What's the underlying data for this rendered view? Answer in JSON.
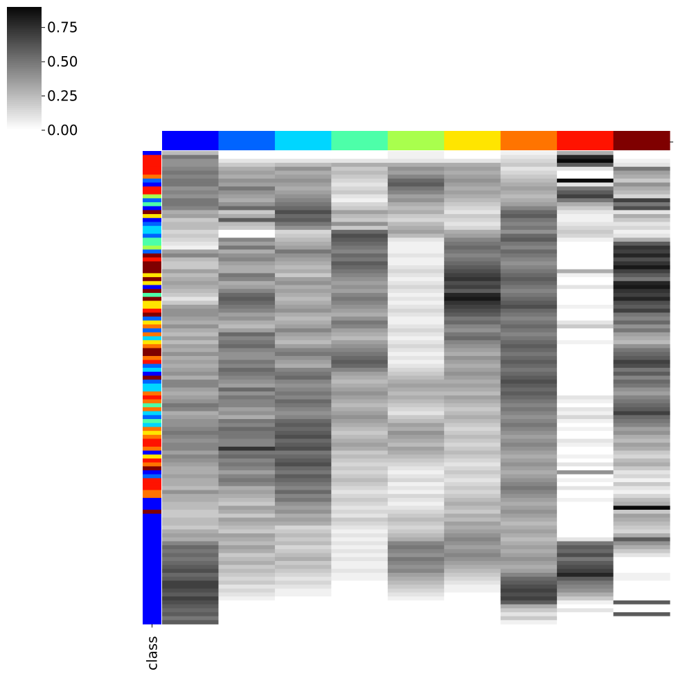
{
  "chart_data": {
    "type": "heatmap",
    "colormap": "Greys",
    "value_range": [
      0.0,
      0.9
    ],
    "colorbar": {
      "ticks": [
        0.0,
        0.25,
        0.5,
        0.75
      ],
      "tick_labels": [
        "0.00",
        "0.25",
        "0.50",
        "0.75"
      ]
    },
    "row_annotation_label": "class",
    "column_count": 9,
    "row_count": 120,
    "column_class_colors": [
      "#0000ff",
      "#0064ff",
      "#00d6ff",
      "#4dffa9",
      "#a9ff4d",
      "#ffe500",
      "#ff7400",
      "#ff1300",
      "#7f0000"
    ],
    "row_class_index_runs": [
      [
        0,
        1
      ],
      [
        7,
        5
      ],
      [
        6,
        1
      ],
      [
        1,
        1
      ],
      [
        0,
        1
      ],
      [
        7,
        2
      ],
      [
        4,
        1
      ],
      [
        1,
        1
      ],
      [
        3,
        1
      ],
      [
        0,
        1
      ],
      [
        8,
        1
      ],
      [
        5,
        1
      ],
      [
        0,
        1
      ],
      [
        1,
        1
      ],
      [
        2,
        2
      ],
      [
        1,
        1
      ],
      [
        3,
        2
      ],
      [
        4,
        1
      ],
      [
        1,
        1
      ],
      [
        8,
        1
      ],
      [
        7,
        1
      ],
      [
        8,
        3
      ],
      [
        5,
        1
      ],
      [
        8,
        1
      ],
      [
        5,
        1
      ],
      [
        0,
        1
      ],
      [
        8,
        1
      ],
      [
        3,
        1
      ],
      [
        8,
        1
      ],
      [
        5,
        2
      ],
      [
        7,
        1
      ],
      [
        8,
        1
      ],
      [
        1,
        1
      ],
      [
        5,
        1
      ],
      [
        6,
        1
      ],
      [
        1,
        1
      ],
      [
        6,
        1
      ],
      [
        2,
        1
      ],
      [
        5,
        1
      ],
      [
        6,
        1
      ],
      [
        8,
        2
      ],
      [
        6,
        1
      ],
      [
        7,
        1
      ],
      [
        1,
        1
      ],
      [
        2,
        1
      ],
      [
        0,
        1
      ],
      [
        8,
        1
      ],
      [
        1,
        1
      ],
      [
        2,
        2
      ],
      [
        6,
        1
      ],
      [
        7,
        1
      ],
      [
        6,
        1
      ],
      [
        3,
        1
      ],
      [
        6,
        1
      ],
      [
        2,
        1
      ],
      [
        1,
        1
      ],
      [
        3,
        1
      ],
      [
        2,
        1
      ],
      [
        6,
        1
      ],
      [
        5,
        1
      ],
      [
        6,
        1
      ],
      [
        7,
        2
      ],
      [
        6,
        1
      ],
      [
        0,
        1
      ],
      [
        5,
        1
      ],
      [
        7,
        1
      ],
      [
        6,
        1
      ],
      [
        8,
        1
      ],
      [
        0,
        1
      ],
      [
        1,
        1
      ],
      [
        7,
        1
      ],
      [
        7,
        2
      ],
      [
        6,
        2
      ],
      [
        0,
        3
      ],
      [
        8,
        1
      ]
    ],
    "columns": [
      [
        0.25,
        0.5,
        0.4,
        0.4,
        0.45,
        0.5,
        0.45,
        0.5,
        0.5,
        0.4,
        0.45,
        0.4,
        0.5,
        0.5,
        0.45,
        0.3,
        0.35,
        0.2,
        0.25,
        0.25,
        0.15,
        0.2,
        0.15,
        0.1,
        0.05,
        0.35,
        0.45,
        0.25,
        0.2,
        0.2,
        0.35,
        0.25,
        0.3,
        0.35,
        0.3,
        0.25,
        0.2,
        0.1,
        0.2,
        0.35,
        0.4,
        0.4,
        0.35,
        0.3,
        0.4,
        0.3,
        0.25,
        0.35,
        0.25,
        0.35,
        0.3,
        0.4,
        0.3,
        0.35,
        0.3,
        0.35,
        0.4,
        0.3,
        0.45,
        0.45,
        0.35,
        0.3,
        0.35,
        0.4,
        0.5,
        0.45,
        0.3,
        0.35,
        0.4,
        0.4,
        0.45,
        0.5,
        0.45,
        0.4,
        0.45,
        0.45,
        0.35,
        0.45,
        0.4,
        0.35,
        0.3,
        0.3,
        0.35,
        0.3,
        0.3,
        0.25,
        0.4,
        0.3,
        0.3,
        0.25,
        0.25,
        0.2,
        0.2,
        0.25,
        0.25,
        0.2,
        0.3,
        0.35,
        0.3,
        0.45,
        0.55,
        0.5,
        0.55,
        0.5,
        0.55,
        0.6,
        0.65,
        0.55,
        0.6,
        0.7,
        0.7,
        0.65,
        0.6,
        0.7,
        0.65,
        0.6,
        0.55,
        0.6,
        0.5,
        0.6
      ],
      [
        0.0,
        0.0,
        0.1,
        0.2,
        0.3,
        0.35,
        0.3,
        0.4,
        0.35,
        0.5,
        0.4,
        0.35,
        0.3,
        0.4,
        0.55,
        0.2,
        0.3,
        0.6,
        0.25,
        0.2,
        0.0,
        0.0,
        0.45,
        0.35,
        0.5,
        0.3,
        0.4,
        0.45,
        0.35,
        0.3,
        0.3,
        0.5,
        0.45,
        0.3,
        0.35,
        0.45,
        0.55,
        0.6,
        0.55,
        0.5,
        0.45,
        0.35,
        0.4,
        0.3,
        0.25,
        0.35,
        0.55,
        0.45,
        0.5,
        0.55,
        0.45,
        0.4,
        0.4,
        0.5,
        0.45,
        0.55,
        0.5,
        0.45,
        0.4,
        0.35,
        0.55,
        0.4,
        0.5,
        0.45,
        0.45,
        0.35,
        0.4,
        0.3,
        0.5,
        0.45,
        0.55,
        0.5,
        0.5,
        0.45,
        0.45,
        0.75,
        0.5,
        0.55,
        0.45,
        0.5,
        0.45,
        0.35,
        0.45,
        0.5,
        0.45,
        0.3,
        0.35,
        0.3,
        0.25,
        0.2,
        0.35,
        0.3,
        0.2,
        0.35,
        0.3,
        0.25,
        0.2,
        0.35,
        0.3,
        0.25,
        0.35,
        0.3,
        0.2,
        0.25,
        0.3,
        0.2,
        0.25,
        0.2,
        0.15,
        0.2,
        0.1,
        0.15,
        0.1,
        0.05,
        0.0,
        0.0,
        0.0,
        0.0,
        0.0,
        0.0
      ],
      [
        0.0,
        0.0,
        0.1,
        0.25,
        0.4,
        0.3,
        0.35,
        0.4,
        0.35,
        0.3,
        0.35,
        0.4,
        0.45,
        0.5,
        0.55,
        0.65,
        0.55,
        0.6,
        0.5,
        0.4,
        0.15,
        0.2,
        0.25,
        0.3,
        0.35,
        0.5,
        0.4,
        0.35,
        0.3,
        0.25,
        0.3,
        0.2,
        0.35,
        0.4,
        0.3,
        0.35,
        0.3,
        0.25,
        0.3,
        0.35,
        0.4,
        0.3,
        0.25,
        0.3,
        0.35,
        0.45,
        0.35,
        0.3,
        0.25,
        0.35,
        0.45,
        0.5,
        0.4,
        0.35,
        0.3,
        0.45,
        0.5,
        0.55,
        0.45,
        0.4,
        0.45,
        0.5,
        0.45,
        0.55,
        0.5,
        0.45,
        0.4,
        0.45,
        0.55,
        0.6,
        0.55,
        0.6,
        0.65,
        0.55,
        0.6,
        0.65,
        0.5,
        0.55,
        0.6,
        0.65,
        0.55,
        0.5,
        0.6,
        0.55,
        0.5,
        0.45,
        0.55,
        0.45,
        0.5,
        0.4,
        0.35,
        0.4,
        0.3,
        0.35,
        0.3,
        0.15,
        0.2,
        0.25,
        0.2,
        0.25,
        0.15,
        0.2,
        0.25,
        0.3,
        0.2,
        0.25,
        0.2,
        0.15,
        0.1,
        0.15,
        0.1,
        0.05,
        0.05,
        0.0,
        0.0,
        0.0,
        0.0,
        0.0,
        0.0,
        0.0
      ],
      [
        0.0,
        0.0,
        0.1,
        0.3,
        0.2,
        0.25,
        0.2,
        0.15,
        0.1,
        0.15,
        0.2,
        0.1,
        0.05,
        0.15,
        0.2,
        0.35,
        0.25,
        0.2,
        0.4,
        0.2,
        0.55,
        0.65,
        0.6,
        0.55,
        0.5,
        0.45,
        0.55,
        0.5,
        0.6,
        0.55,
        0.5,
        0.45,
        0.4,
        0.35,
        0.4,
        0.35,
        0.45,
        0.5,
        0.45,
        0.4,
        0.35,
        0.3,
        0.4,
        0.5,
        0.45,
        0.35,
        0.3,
        0.25,
        0.35,
        0.4,
        0.45,
        0.5,
        0.55,
        0.6,
        0.55,
        0.45,
        0.35,
        0.3,
        0.25,
        0.3,
        0.35,
        0.4,
        0.35,
        0.3,
        0.25,
        0.3,
        0.35,
        0.4,
        0.35,
        0.3,
        0.25,
        0.2,
        0.25,
        0.3,
        0.35,
        0.3,
        0.2,
        0.25,
        0.2,
        0.15,
        0.2,
        0.15,
        0.2,
        0.25,
        0.2,
        0.15,
        0.1,
        0.15,
        0.2,
        0.15,
        0.1,
        0.15,
        0.1,
        0.2,
        0.15,
        0.1,
        0.05,
        0.1,
        0.05,
        0.1,
        0.05,
        0.1,
        0.05,
        0.1,
        0.05,
        0.05,
        0.1,
        0.05,
        0.05,
        0.0,
        0.0,
        0.0,
        0.0,
        0.0,
        0.0,
        0.0,
        0.0,
        0.0,
        0.0,
        0.0
      ],
      [
        0.05,
        0.05,
        0.1,
        0.3,
        0.4,
        0.35,
        0.45,
        0.55,
        0.6,
        0.5,
        0.45,
        0.35,
        0.4,
        0.3,
        0.25,
        0.3,
        0.2,
        0.15,
        0.25,
        0.3,
        0.35,
        0.25,
        0.1,
        0.05,
        0.05,
        0.05,
        0.1,
        0.05,
        0.05,
        0.1,
        0.15,
        0.1,
        0.05,
        0.1,
        0.15,
        0.1,
        0.05,
        0.1,
        0.05,
        0.1,
        0.15,
        0.1,
        0.05,
        0.05,
        0.1,
        0.15,
        0.1,
        0.05,
        0.1,
        0.15,
        0.1,
        0.05,
        0.1,
        0.05,
        0.1,
        0.15,
        0.2,
        0.25,
        0.3,
        0.35,
        0.3,
        0.25,
        0.3,
        0.25,
        0.2,
        0.15,
        0.1,
        0.2,
        0.25,
        0.35,
        0.3,
        0.4,
        0.35,
        0.3,
        0.25,
        0.35,
        0.3,
        0.25,
        0.2,
        0.15,
        0.1,
        0.05,
        0.1,
        0.15,
        0.05,
        0.1,
        0.05,
        0.15,
        0.1,
        0.05,
        0.1,
        0.15,
        0.2,
        0.25,
        0.2,
        0.15,
        0.2,
        0.25,
        0.3,
        0.45,
        0.5,
        0.45,
        0.4,
        0.5,
        0.45,
        0.4,
        0.45,
        0.35,
        0.3,
        0.25,
        0.2,
        0.15,
        0.1,
        0.05,
        0.0,
        0.0,
        0.0,
        0.0,
        0.0,
        0.0
      ],
      [
        0.0,
        0.0,
        0.1,
        0.3,
        0.35,
        0.3,
        0.35,
        0.4,
        0.35,
        0.3,
        0.35,
        0.3,
        0.25,
        0.2,
        0.15,
        0.1,
        0.2,
        0.15,
        0.1,
        0.15,
        0.3,
        0.35,
        0.45,
        0.5,
        0.55,
        0.5,
        0.45,
        0.5,
        0.55,
        0.6,
        0.65,
        0.7,
        0.75,
        0.65,
        0.7,
        0.6,
        0.8,
        0.85,
        0.75,
        0.7,
        0.65,
        0.6,
        0.5,
        0.55,
        0.45,
        0.4,
        0.5,
        0.55,
        0.45,
        0.4,
        0.35,
        0.3,
        0.4,
        0.35,
        0.3,
        0.35,
        0.4,
        0.35,
        0.3,
        0.35,
        0.3,
        0.25,
        0.35,
        0.3,
        0.25,
        0.2,
        0.25,
        0.3,
        0.25,
        0.2,
        0.15,
        0.2,
        0.25,
        0.2,
        0.15,
        0.2,
        0.25,
        0.2,
        0.15,
        0.1,
        0.15,
        0.2,
        0.15,
        0.1,
        0.15,
        0.2,
        0.15,
        0.2,
        0.25,
        0.3,
        0.25,
        0.2,
        0.3,
        0.25,
        0.35,
        0.3,
        0.35,
        0.4,
        0.45,
        0.4,
        0.35,
        0.4,
        0.45,
        0.4,
        0.35,
        0.3,
        0.25,
        0.2,
        0.15,
        0.1,
        0.05,
        0.05,
        0.0,
        0.0,
        0.0,
        0.0,
        0.0,
        0.0,
        0.0,
        0.0
      ],
      [
        0.05,
        0.1,
        0.15,
        0.2,
        0.1,
        0.15,
        0.2,
        0.25,
        0.3,
        0.35,
        0.3,
        0.25,
        0.3,
        0.35,
        0.45,
        0.55,
        0.6,
        0.5,
        0.45,
        0.5,
        0.4,
        0.55,
        0.6,
        0.5,
        0.45,
        0.55,
        0.5,
        0.45,
        0.4,
        0.45,
        0.5,
        0.55,
        0.6,
        0.55,
        0.5,
        0.45,
        0.5,
        0.55,
        0.6,
        0.65,
        0.55,
        0.5,
        0.45,
        0.5,
        0.55,
        0.5,
        0.45,
        0.5,
        0.55,
        0.6,
        0.55,
        0.5,
        0.55,
        0.6,
        0.55,
        0.5,
        0.55,
        0.6,
        0.65,
        0.6,
        0.55,
        0.6,
        0.55,
        0.5,
        0.45,
        0.5,
        0.45,
        0.4,
        0.45,
        0.5,
        0.45,
        0.4,
        0.35,
        0.4,
        0.45,
        0.4,
        0.35,
        0.3,
        0.35,
        0.4,
        0.35,
        0.3,
        0.35,
        0.4,
        0.45,
        0.5,
        0.45,
        0.4,
        0.35,
        0.3,
        0.35,
        0.4,
        0.35,
        0.3,
        0.25,
        0.3,
        0.35,
        0.3,
        0.25,
        0.3,
        0.35,
        0.3,
        0.35,
        0.4,
        0.35,
        0.3,
        0.35,
        0.45,
        0.55,
        0.6,
        0.65,
        0.7,
        0.65,
        0.7,
        0.6,
        0.3,
        0.2,
        0.1,
        0.2,
        0.05
      ],
      [
        0.3,
        0.8,
        0.9,
        0.6,
        0.1,
        0.0,
        0.0,
        0.9,
        0.1,
        0.5,
        0.6,
        0.7,
        0.5,
        0.3,
        0.2,
        0.1,
        0.05,
        0.05,
        0.1,
        0.15,
        0.2,
        0.15,
        0.05,
        0.0,
        0.0,
        0.0,
        0.0,
        0.0,
        0.0,
        0.0,
        0.3,
        0.05,
        0.0,
        0.0,
        0.1,
        0.0,
        0.0,
        0.0,
        0.0,
        0.05,
        0.0,
        0.0,
        0.0,
        0.1,
        0.2,
        0.0,
        0.0,
        0.0,
        0.05,
        0.0,
        0.0,
        0.0,
        0.0,
        0.0,
        0.0,
        0.0,
        0.0,
        0.0,
        0.0,
        0.0,
        0.0,
        0.0,
        0.1,
        0.05,
        0.0,
        0.1,
        0.05,
        0.15,
        0.05,
        0.0,
        0.05,
        0.0,
        0.0,
        0.1,
        0.05,
        0.0,
        0.0,
        0.05,
        0.0,
        0.1,
        0.0,
        0.4,
        0.0,
        0.05,
        0.0,
        0.1,
        0.0,
        0.0,
        0.05,
        0.0,
        0.0,
        0.0,
        0.0,
        0.0,
        0.0,
        0.0,
        0.0,
        0.0,
        0.1,
        0.5,
        0.6,
        0.55,
        0.65,
        0.5,
        0.6,
        0.65,
        0.7,
        0.8,
        0.6,
        0.5,
        0.45,
        0.4,
        0.3,
        0.2,
        0.05,
        0.0,
        0.1,
        0.0,
        0.0,
        0.0
      ],
      [
        0.0,
        0.0,
        0.05,
        0.1,
        0.5,
        0.35,
        0.3,
        0.2,
        0.4,
        0.3,
        0.25,
        0.15,
        0.7,
        0.5,
        0.65,
        0.1,
        0.3,
        0.2,
        0.1,
        0.15,
        0.05,
        0.1,
        0.3,
        0.6,
        0.75,
        0.7,
        0.8,
        0.65,
        0.75,
        0.85,
        0.7,
        0.6,
        0.5,
        0.8,
        0.85,
        0.75,
        0.7,
        0.8,
        0.65,
        0.6,
        0.7,
        0.5,
        0.45,
        0.55,
        0.4,
        0.5,
        0.35,
        0.3,
        0.25,
        0.4,
        0.5,
        0.55,
        0.6,
        0.7,
        0.65,
        0.5,
        0.6,
        0.45,
        0.55,
        0.5,
        0.4,
        0.35,
        0.45,
        0.5,
        0.55,
        0.6,
        0.7,
        0.55,
        0.5,
        0.45,
        0.35,
        0.4,
        0.3,
        0.25,
        0.35,
        0.3,
        0.2,
        0.15,
        0.25,
        0.3,
        0.2,
        0.1,
        0.15,
        0.05,
        0.2,
        0.1,
        0.05,
        0.15,
        0.25,
        0.3,
        0.9,
        0.2,
        0.35,
        0.3,
        0.25,
        0.2,
        0.15,
        0.3,
        0.6,
        0.4,
        0.3,
        0.2,
        0.1,
        0.0,
        0.0,
        0.0,
        0.0,
        0.05,
        0.05,
        0.0,
        0.0,
        0.0,
        0.0,
        0.0,
        0.6,
        0.0,
        0.0,
        0.6,
        0.0,
        0.0
      ]
    ]
  }
}
